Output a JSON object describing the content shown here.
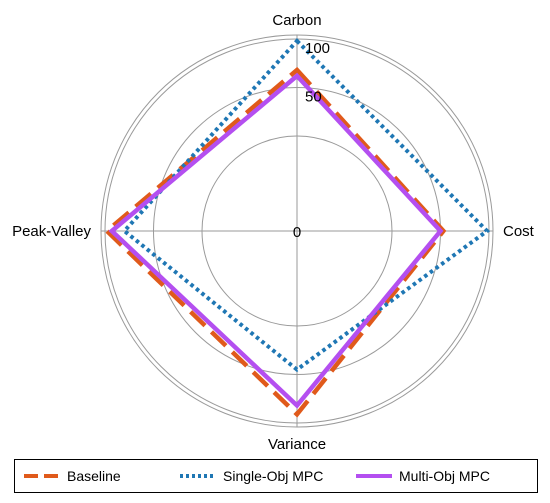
{
  "chart_data": {
    "type": "radar",
    "axes": [
      "Carbon",
      "Cost",
      "Variance",
      "Peak-Valley"
    ],
    "radial_ticks": [
      "0",
      "50",
      "100"
    ],
    "rlim": [
      0,
      100
    ],
    "series": [
      {
        "name": "Baseline",
        "values": [
          68,
          53,
          91,
          98
        ],
        "color": "#E05A1B",
        "style": "dashed"
      },
      {
        "name": "Single-Obj MPC",
        "values": [
          98,
          98,
          45,
          80
        ],
        "color": "#1F77B4",
        "style": "dotted"
      },
      {
        "name": "Multi-Obj MPC",
        "values": [
          62,
          50,
          82,
          93
        ],
        "color": "#B44FF0",
        "style": "solid"
      }
    ]
  }
}
